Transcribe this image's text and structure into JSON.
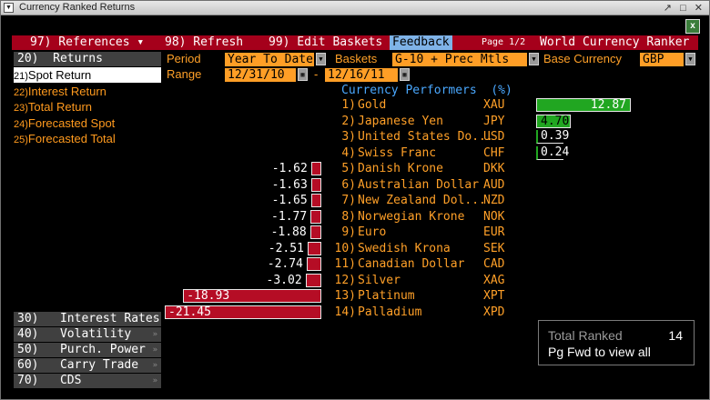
{
  "window": {
    "title": "Currency Ranked Returns",
    "controls": "↗ □ ✕"
  },
  "toolbar": {
    "references": "97) References ▾",
    "refresh": "98) Refresh",
    "edit_baskets": "99) Edit Baskets",
    "feedback": "Feedback",
    "page": "Page 1/2",
    "app_name": "World Currency Ranker"
  },
  "left_menu": {
    "header": "20)  Returns",
    "items": [
      {
        "num": "21)",
        "label": "Spot Return",
        "selected": true
      },
      {
        "num": "22)",
        "label": "Interest Return"
      },
      {
        "num": "23)",
        "label": "Total Return"
      },
      {
        "num": "24)",
        "label": "Forecasted Spot"
      },
      {
        "num": "25)",
        "label": "Forecasted Total"
      }
    ],
    "bottom_tabs": [
      "30)   Interest Rates",
      "40)   Volatility",
      "50)   Purch. Power",
      "60)   Carry Trade",
      "70)   CDS"
    ]
  },
  "controls": {
    "period_label": "Period",
    "period_value": "Year To Date",
    "baskets_label": "Baskets",
    "baskets_value": "G-10 + Prec Mtls",
    "base_label": "Base Currency",
    "base_value": "GBP",
    "range_label": "Range",
    "range_start": "12/31/10",
    "range_sep": "-",
    "range_end": "12/16/11"
  },
  "performers_header": "Currency Performers  (%)",
  "chart_data": {
    "type": "bar",
    "title": "Currency Performers  (%)",
    "categories": [
      "Gold",
      "Japanese Yen",
      "United States Do...",
      "Swiss Franc",
      "Danish Krone",
      "Australian Dollar",
      "New Zealand Dol...",
      "Norwegian Krone",
      "Euro",
      "Swedish Krona",
      "Canadian Dollar",
      "Silver",
      "Platinum",
      "Palladium"
    ],
    "ranks": [
      "1)",
      "2)",
      "3)",
      "4)",
      "5)",
      "6)",
      "7)",
      "8)",
      "9)",
      "10)",
      "11)",
      "12)",
      "13)",
      "14)"
    ],
    "tickers": [
      "XAU",
      "JPY",
      "USD",
      "CHF",
      "DKK",
      "AUD",
      "NZD",
      "NOK",
      "EUR",
      "SEK",
      "CAD",
      "XAG",
      "XPT",
      "XPD"
    ],
    "values": [
      12.87,
      4.7,
      0.39,
      0.24,
      -1.62,
      -1.63,
      -1.65,
      -1.77,
      -1.88,
      -2.51,
      -2.74,
      -3.02,
      -18.93,
      -21.45
    ],
    "labels": [
      "12.87",
      "4.70",
      "0.39",
      "0.24",
      "-1.62",
      "-1.63",
      "-1.65",
      "-1.77",
      "-1.88",
      "-2.51",
      "-2.74",
      "-3.02",
      "-18.93",
      "-21.45"
    ]
  },
  "summary": {
    "total_label": "Total Ranked",
    "total_value": "14",
    "hint": "Pg Fwd to view all"
  },
  "colors": {
    "positive": "#21a621",
    "negative": "#b50d25",
    "accent": "#ff9e26",
    "toolbar": "#a5001b"
  }
}
